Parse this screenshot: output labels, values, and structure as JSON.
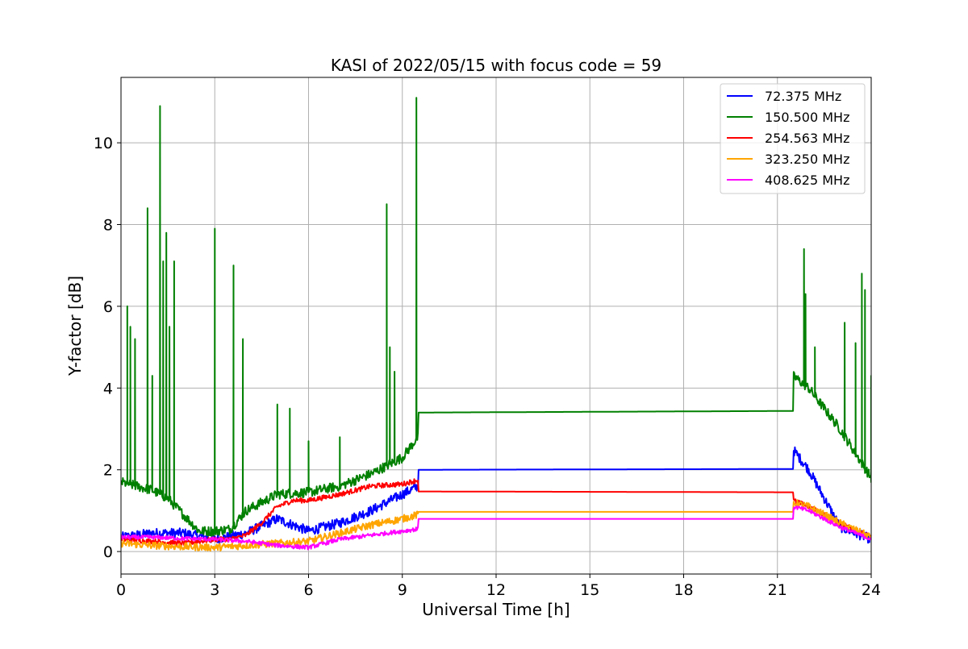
{
  "chart_data": {
    "type": "line",
    "title": "KASI of 2022/05/15 with focus code = 59",
    "xlabel": "Universal Time [h]",
    "ylabel": "Y-factor [dB]",
    "xlim": [
      0,
      24
    ],
    "ylim": [
      -0.55,
      11.6
    ],
    "x_ticks": [
      0,
      3,
      6,
      9,
      12,
      15,
      18,
      21,
      24
    ],
    "x_tick_labels": [
      "0",
      "3",
      "6",
      "9",
      "12",
      "15",
      "18",
      "21",
      "24"
    ],
    "y_ticks": [
      0,
      2,
      4,
      6,
      8,
      10
    ],
    "y_tick_labels": [
      "0",
      "2",
      "4",
      "6",
      "8",
      "10"
    ],
    "grid": true,
    "legend_position": "top-right",
    "series": [
      {
        "name": "  72.375 MHz",
        "color": "#0000ff",
        "noise": 0.12,
        "x": [
          0,
          1,
          2,
          3,
          4,
          5,
          6,
          7,
          8,
          9,
          9.5,
          9.5,
          21.5,
          21.5,
          22,
          23,
          24
        ],
        "y": [
          0.35,
          0.45,
          0.45,
          0.3,
          0.45,
          0.8,
          0.5,
          0.7,
          1.0,
          1.4,
          1.6,
          2.0,
          2.02,
          2.5,
          2.0,
          0.6,
          0.3
        ],
        "spikes": []
      },
      {
        "name": "150.500 MHz",
        "color": "#008000",
        "noise": 0.12,
        "x": [
          0,
          0.5,
          1,
          1.5,
          2,
          2.5,
          3,
          3.5,
          4,
          5,
          6,
          7,
          8,
          9,
          9.5,
          9.5,
          21.5,
          21.5,
          22,
          23,
          24
        ],
        "y": [
          1.7,
          1.6,
          1.5,
          1.3,
          0.9,
          0.5,
          0.5,
          0.55,
          1.0,
          1.4,
          1.45,
          1.6,
          1.9,
          2.3,
          2.8,
          3.4,
          3.44,
          4.3,
          4.0,
          3.0,
          1.8
        ],
        "spikes": [
          [
            0.2,
            6.0
          ],
          [
            0.3,
            5.5
          ],
          [
            0.45,
            5.2
          ],
          [
            0.85,
            8.4
          ],
          [
            1.0,
            4.3
          ],
          [
            1.25,
            10.9
          ],
          [
            1.35,
            7.1
          ],
          [
            1.45,
            7.8
          ],
          [
            1.55,
            5.5
          ],
          [
            1.7,
            7.1
          ],
          [
            3.0,
            7.9
          ],
          [
            3.6,
            7.0
          ],
          [
            3.9,
            5.2
          ],
          [
            5.0,
            3.6
          ],
          [
            5.4,
            3.5
          ],
          [
            6.0,
            2.7
          ],
          [
            7.0,
            2.8
          ],
          [
            8.5,
            8.5
          ],
          [
            8.6,
            5.0
          ],
          [
            8.75,
            4.4
          ],
          [
            9.45,
            11.1
          ],
          [
            21.85,
            7.4
          ],
          [
            21.9,
            6.3
          ],
          [
            22.2,
            5.0
          ],
          [
            23.15,
            5.6
          ],
          [
            23.5,
            5.1
          ],
          [
            23.7,
            6.8
          ],
          [
            23.8,
            6.4
          ],
          [
            24.0,
            4.3
          ]
        ]
      },
      {
        "name": "254.563 MHz",
        "color": "#ff0000",
        "noise": 0.06,
        "x": [
          0,
          1,
          2,
          3,
          3.5,
          4,
          4.5,
          5,
          5.5,
          6,
          7,
          8,
          9,
          9.5,
          9.5,
          21.5,
          21.5,
          22,
          23,
          24
        ],
        "y": [
          0.3,
          0.25,
          0.2,
          0.3,
          0.3,
          0.4,
          0.7,
          1.1,
          1.25,
          1.25,
          1.4,
          1.6,
          1.65,
          1.75,
          1.47,
          1.45,
          1.25,
          1.1,
          0.7,
          0.35
        ],
        "spikes": []
      },
      {
        "name": "323.250 MHz",
        "color": "#ffa500",
        "noise": 0.09,
        "x": [
          0,
          1,
          2,
          3,
          4,
          5,
          6,
          7,
          8,
          9,
          9.5,
          9.5,
          21.5,
          21.5,
          22,
          23,
          24
        ],
        "y": [
          0.2,
          0.15,
          0.12,
          0.1,
          0.15,
          0.2,
          0.25,
          0.45,
          0.65,
          0.8,
          0.9,
          0.97,
          0.97,
          1.2,
          1.1,
          0.7,
          0.35
        ],
        "spikes": []
      },
      {
        "name": "408.625 MHz",
        "color": "#ff00ff",
        "noise": 0.05,
        "x": [
          0,
          1,
          2,
          3,
          4,
          5,
          6,
          7,
          8,
          9,
          9.5,
          9.5,
          21.5,
          21.5,
          22,
          23,
          24
        ],
        "y": [
          0.35,
          0.35,
          0.32,
          0.3,
          0.25,
          0.15,
          0.1,
          0.3,
          0.4,
          0.5,
          0.55,
          0.8,
          0.8,
          1.1,
          1.0,
          0.6,
          0.3
        ],
        "spikes": []
      }
    ]
  }
}
